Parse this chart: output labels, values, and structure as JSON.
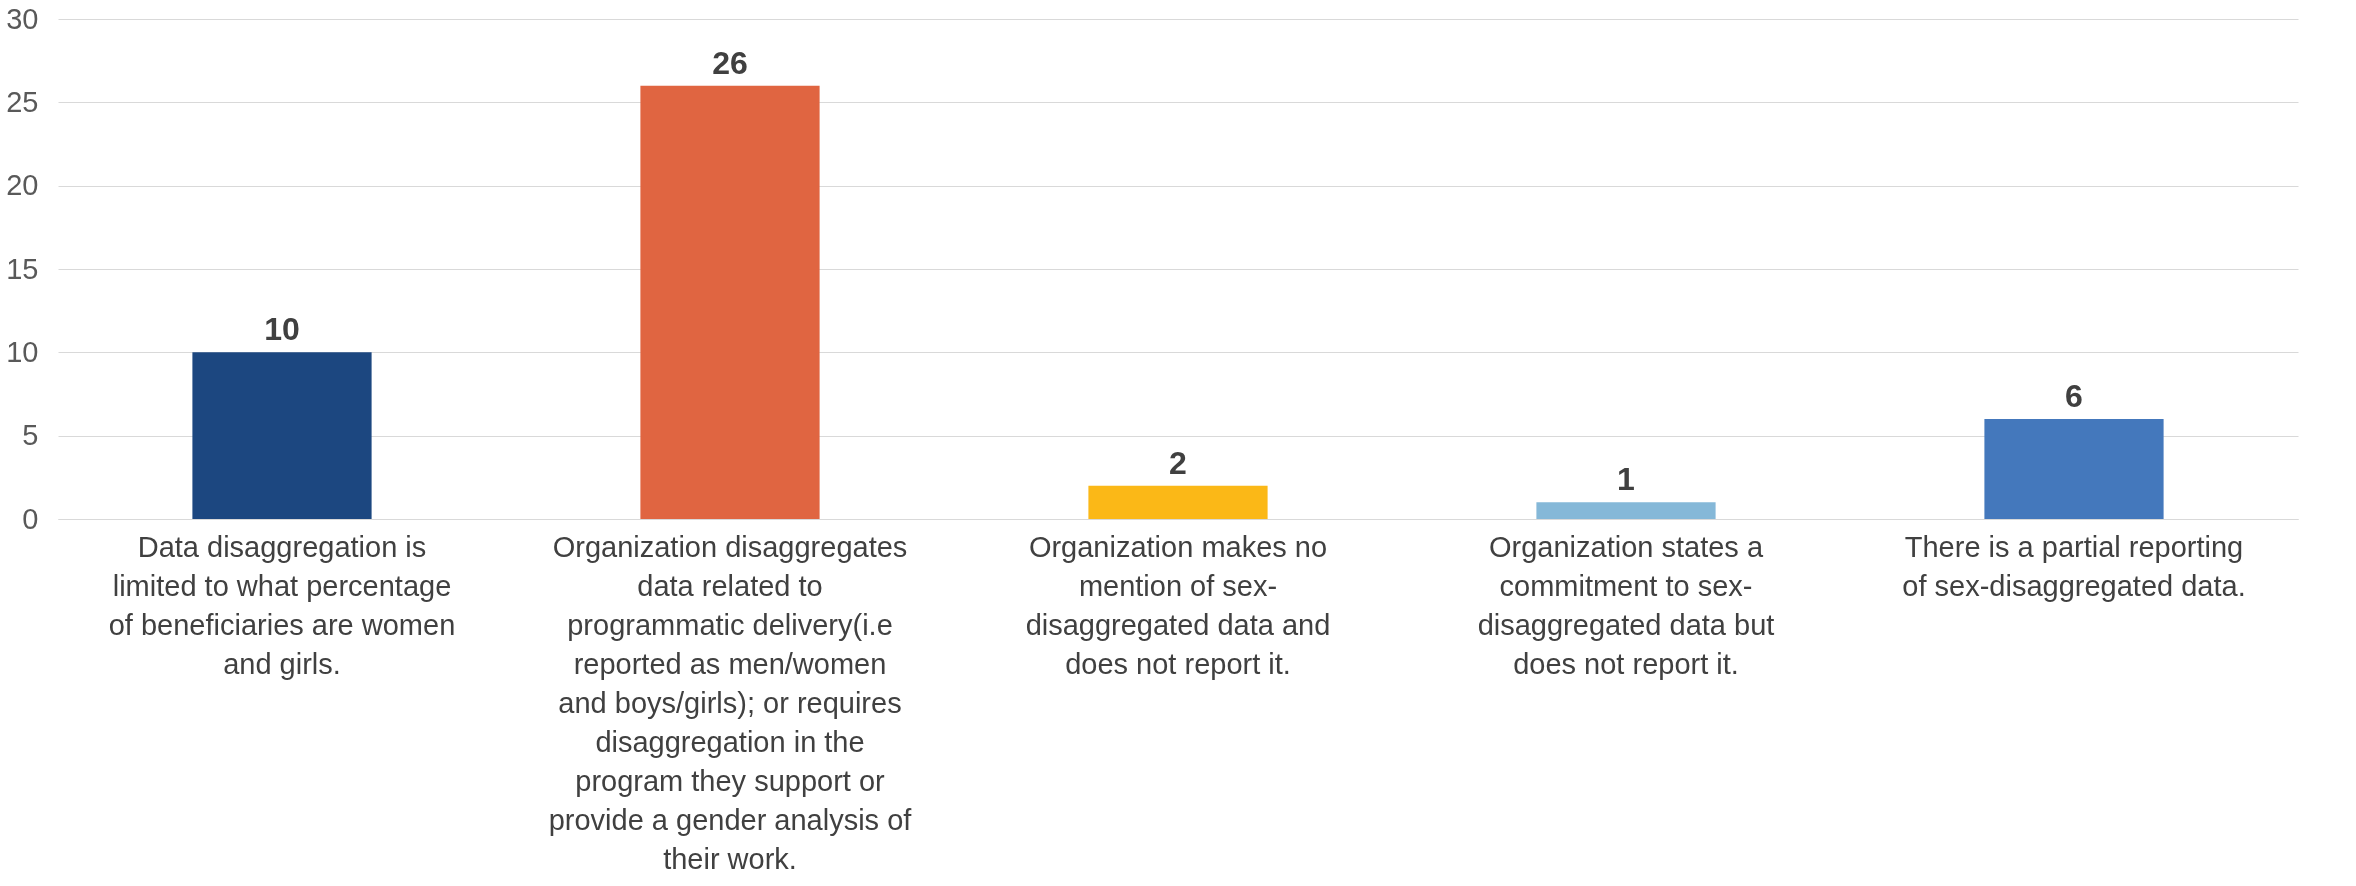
{
  "chart_data": {
    "type": "bar",
    "categories": [
      "Data disaggregation is\nlimited to what percentage\nof beneficiaries are women\nand girls.",
      "Organization disaggregates\ndata related to\nprogrammatic delivery(i.e\nreported as men/women\nand boys/girls); or requires\ndisaggregation in the\nprogram they support or\nprovide a gender analysis of\ntheir work.",
      "Organization makes no\nmention of sex-\ndisaggregated data and\ndoes not report it.",
      "Organization states a\ncommitment to sex-\ndisaggregated data but\ndoes not report it.",
      "There is a partial reporting\nof sex-disaggregated data."
    ],
    "values": [
      10,
      26,
      2,
      1,
      6
    ],
    "colors": [
      "#1c4780",
      "#e06541",
      "#fbb817",
      "#85b8d8",
      "#4478bc"
    ],
    "ylim": [
      0,
      30
    ],
    "yticks": [
      0,
      5,
      10,
      15,
      20,
      25,
      30
    ],
    "grid": "y",
    "data_labels": true
  }
}
